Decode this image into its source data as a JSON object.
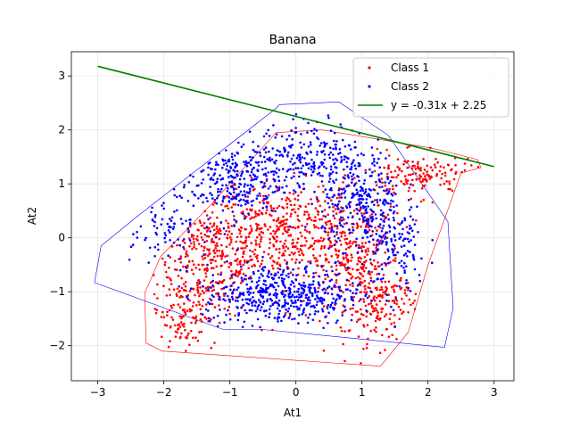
{
  "chart_data": {
    "type": "scatter",
    "title": "Banana",
    "xlabel": "At1",
    "ylabel": "At2",
    "xlim": [
      -3.4,
      3.3
    ],
    "ylim": [
      -2.65,
      3.45
    ],
    "xticks": [
      -3,
      -2,
      -1,
      0,
      1,
      2,
      3
    ],
    "yticks": [
      -2,
      -1,
      0,
      1,
      2,
      3
    ],
    "grid": true,
    "legend_position": "top-right",
    "colors": {
      "class1": "#ff0000",
      "class2": "#0000ff",
      "line": "#008000"
    },
    "series": [
      {
        "name": "Class 1",
        "kind": "scatter",
        "hull": [
          [
            1.28,
            -2.38
          ],
          [
            -2.03,
            -2.1
          ],
          [
            -2.27,
            -1.95
          ],
          [
            -2.29,
            -1.03
          ],
          [
            -2.05,
            -0.35
          ],
          [
            -1.3,
            0.6
          ],
          [
            -0.3,
            1.95
          ],
          [
            0.4,
            2.0
          ],
          [
            2.07,
            1.66
          ],
          [
            2.75,
            1.45
          ],
          [
            2.8,
            1.3
          ],
          [
            2.5,
            1.2
          ],
          [
            2.0,
            -0.5
          ],
          [
            1.7,
            -1.75
          ],
          [
            1.28,
            -2.38
          ]
        ],
        "clusters": [
          {
            "cx": -1.3,
            "cy": -0.3,
            "sx": 0.42,
            "sy": 0.55,
            "n": 330
          },
          {
            "cx": -0.2,
            "cy": 0.1,
            "sx": 0.55,
            "sy": 0.45,
            "n": 400
          },
          {
            "cx": 0.9,
            "cy": -0.4,
            "sx": 0.35,
            "sy": 0.6,
            "n": 320
          },
          {
            "cx": 1.3,
            "cy": -1.3,
            "sx": 0.25,
            "sy": 0.35,
            "n": 120
          },
          {
            "cx": 1.9,
            "cy": 1.15,
            "sx": 0.45,
            "sy": 0.2,
            "n": 150
          },
          {
            "cx": -1.7,
            "cy": -1.4,
            "sx": 0.25,
            "sy": 0.3,
            "n": 110
          }
        ]
      },
      {
        "name": "Class 2",
        "kind": "scatter",
        "hull": [
          [
            -3.05,
            -0.83
          ],
          [
            -2.95,
            -0.15
          ],
          [
            -2.4,
            0.4
          ],
          [
            -0.3,
            2.4
          ],
          [
            -0.25,
            2.47
          ],
          [
            0.65,
            2.52
          ],
          [
            1.4,
            1.9
          ],
          [
            2.3,
            0.3
          ],
          [
            2.38,
            -1.3
          ],
          [
            2.25,
            -2.03
          ],
          [
            -0.5,
            -1.7
          ],
          [
            -1.1,
            -1.7
          ],
          [
            -3.05,
            -0.83
          ]
        ],
        "clusters": [
          {
            "cx": -0.2,
            "cy": -1.05,
            "sx": 0.6,
            "sy": 0.28,
            "n": 520
          },
          {
            "cx": -1.0,
            "cy": 1.05,
            "sx": 0.4,
            "sy": 0.33,
            "n": 260
          },
          {
            "cx": 0.2,
            "cy": 1.55,
            "sx": 0.45,
            "sy": 0.3,
            "n": 250
          },
          {
            "cx": 1.0,
            "cy": 0.6,
            "sx": 0.3,
            "sy": 0.45,
            "n": 280
          },
          {
            "cx": 1.5,
            "cy": -0.2,
            "sx": 0.25,
            "sy": 0.4,
            "n": 120
          },
          {
            "cx": -2.0,
            "cy": 0.3,
            "sx": 0.35,
            "sy": 0.3,
            "n": 80
          }
        ]
      },
      {
        "name": "y = -0.31x + 2.25",
        "kind": "line",
        "slope": -0.31,
        "intercept": 2.25,
        "x_range": [
          -3,
          3
        ]
      }
    ]
  }
}
